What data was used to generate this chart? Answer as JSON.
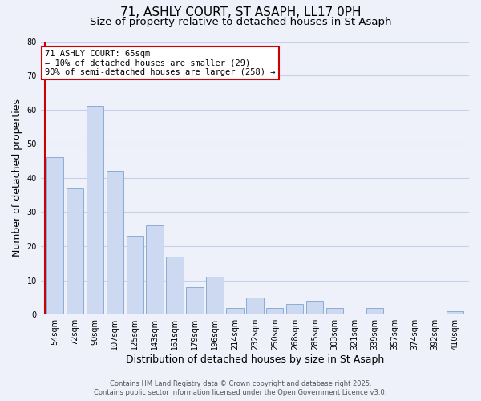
{
  "title": "71, ASHLY COURT, ST ASAPH, LL17 0PH",
  "subtitle": "Size of property relative to detached houses in St Asaph",
  "xlabel": "Distribution of detached houses by size in St Asaph",
  "ylabel": "Number of detached properties",
  "bar_color": "#cdd9f0",
  "bar_edge_color": "#8aadd4",
  "background_color": "#eef1fa",
  "grid_color": "#c8d0e8",
  "categories": [
    "54sqm",
    "72sqm",
    "90sqm",
    "107sqm",
    "125sqm",
    "143sqm",
    "161sqm",
    "179sqm",
    "196sqm",
    "214sqm",
    "232sqm",
    "250sqm",
    "268sqm",
    "285sqm",
    "303sqm",
    "321sqm",
    "339sqm",
    "357sqm",
    "374sqm",
    "392sqm",
    "410sqm"
  ],
  "values": [
    46,
    37,
    61,
    42,
    23,
    26,
    17,
    8,
    11,
    2,
    5,
    2,
    3,
    4,
    2,
    0,
    2,
    0,
    0,
    0,
    1
  ],
  "ylim": [
    0,
    80
  ],
  "yticks": [
    0,
    10,
    20,
    30,
    40,
    50,
    60,
    70,
    80
  ],
  "annotation_text": "71 ASHLY COURT: 65sqm\n← 10% of detached houses are smaller (29)\n90% of semi-detached houses are larger (258) →",
  "annotation_box_color": "#ffffff",
  "annotation_border_color": "#cc0000",
  "red_line_color": "#cc0000",
  "footer_line1": "Contains HM Land Registry data © Crown copyright and database right 2025.",
  "footer_line2": "Contains public sector information licensed under the Open Government Licence v3.0.",
  "title_fontsize": 11,
  "subtitle_fontsize": 9.5,
  "tick_fontsize": 7,
  "label_fontsize": 9,
  "footer_fontsize": 6,
  "annotation_fontsize": 7.5
}
